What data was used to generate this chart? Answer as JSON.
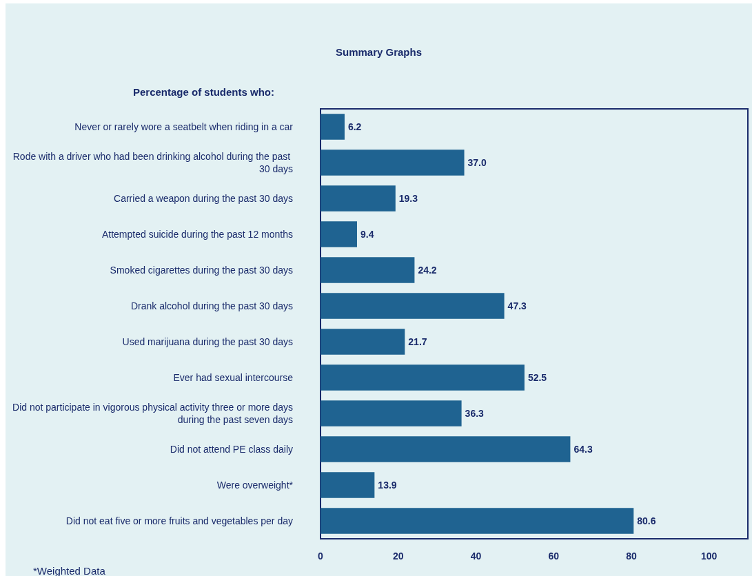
{
  "chart_data": {
    "type": "bar",
    "orientation": "horizontal",
    "title": "Summary Graphs",
    "subtitle": "Percentage of students who:",
    "categories": [
      "Never or rarely wore a seatbelt when riding in a car",
      "Rode with a driver who had been drinking alcohol during the past 30 days",
      "Carried a weapon during the past 30 days",
      "Attempted suicide during the past 12 months",
      "Smoked cigarettes during the past 30 days",
      "Drank alcohol during the past 30 days",
      "Used marijuana during the past 30 days",
      "Ever had sexual intercourse",
      "Did not participate in vigorous physical activity three or more days during the past seven days",
      "Did not attend PE class daily",
      "Were overweight*",
      "Did not eat five or more fruits and vegetables per day"
    ],
    "values": [
      6.2,
      37.0,
      19.3,
      9.4,
      24.2,
      47.3,
      21.7,
      52.5,
      36.3,
      64.3,
      13.9,
      80.6
    ],
    "value_labels": [
      "6.2",
      "37.0",
      "19.3",
      "9.4",
      "24.2",
      "47.3",
      "21.7",
      "52.5",
      "36.3",
      "64.3",
      "13.9",
      "80.6"
    ],
    "color": "#1f6391",
    "xlim": [
      0,
      110
    ],
    "xticks": [
      0,
      20,
      40,
      60,
      80,
      100
    ],
    "grid": false,
    "annotations": [
      "*Weighted Data"
    ]
  }
}
